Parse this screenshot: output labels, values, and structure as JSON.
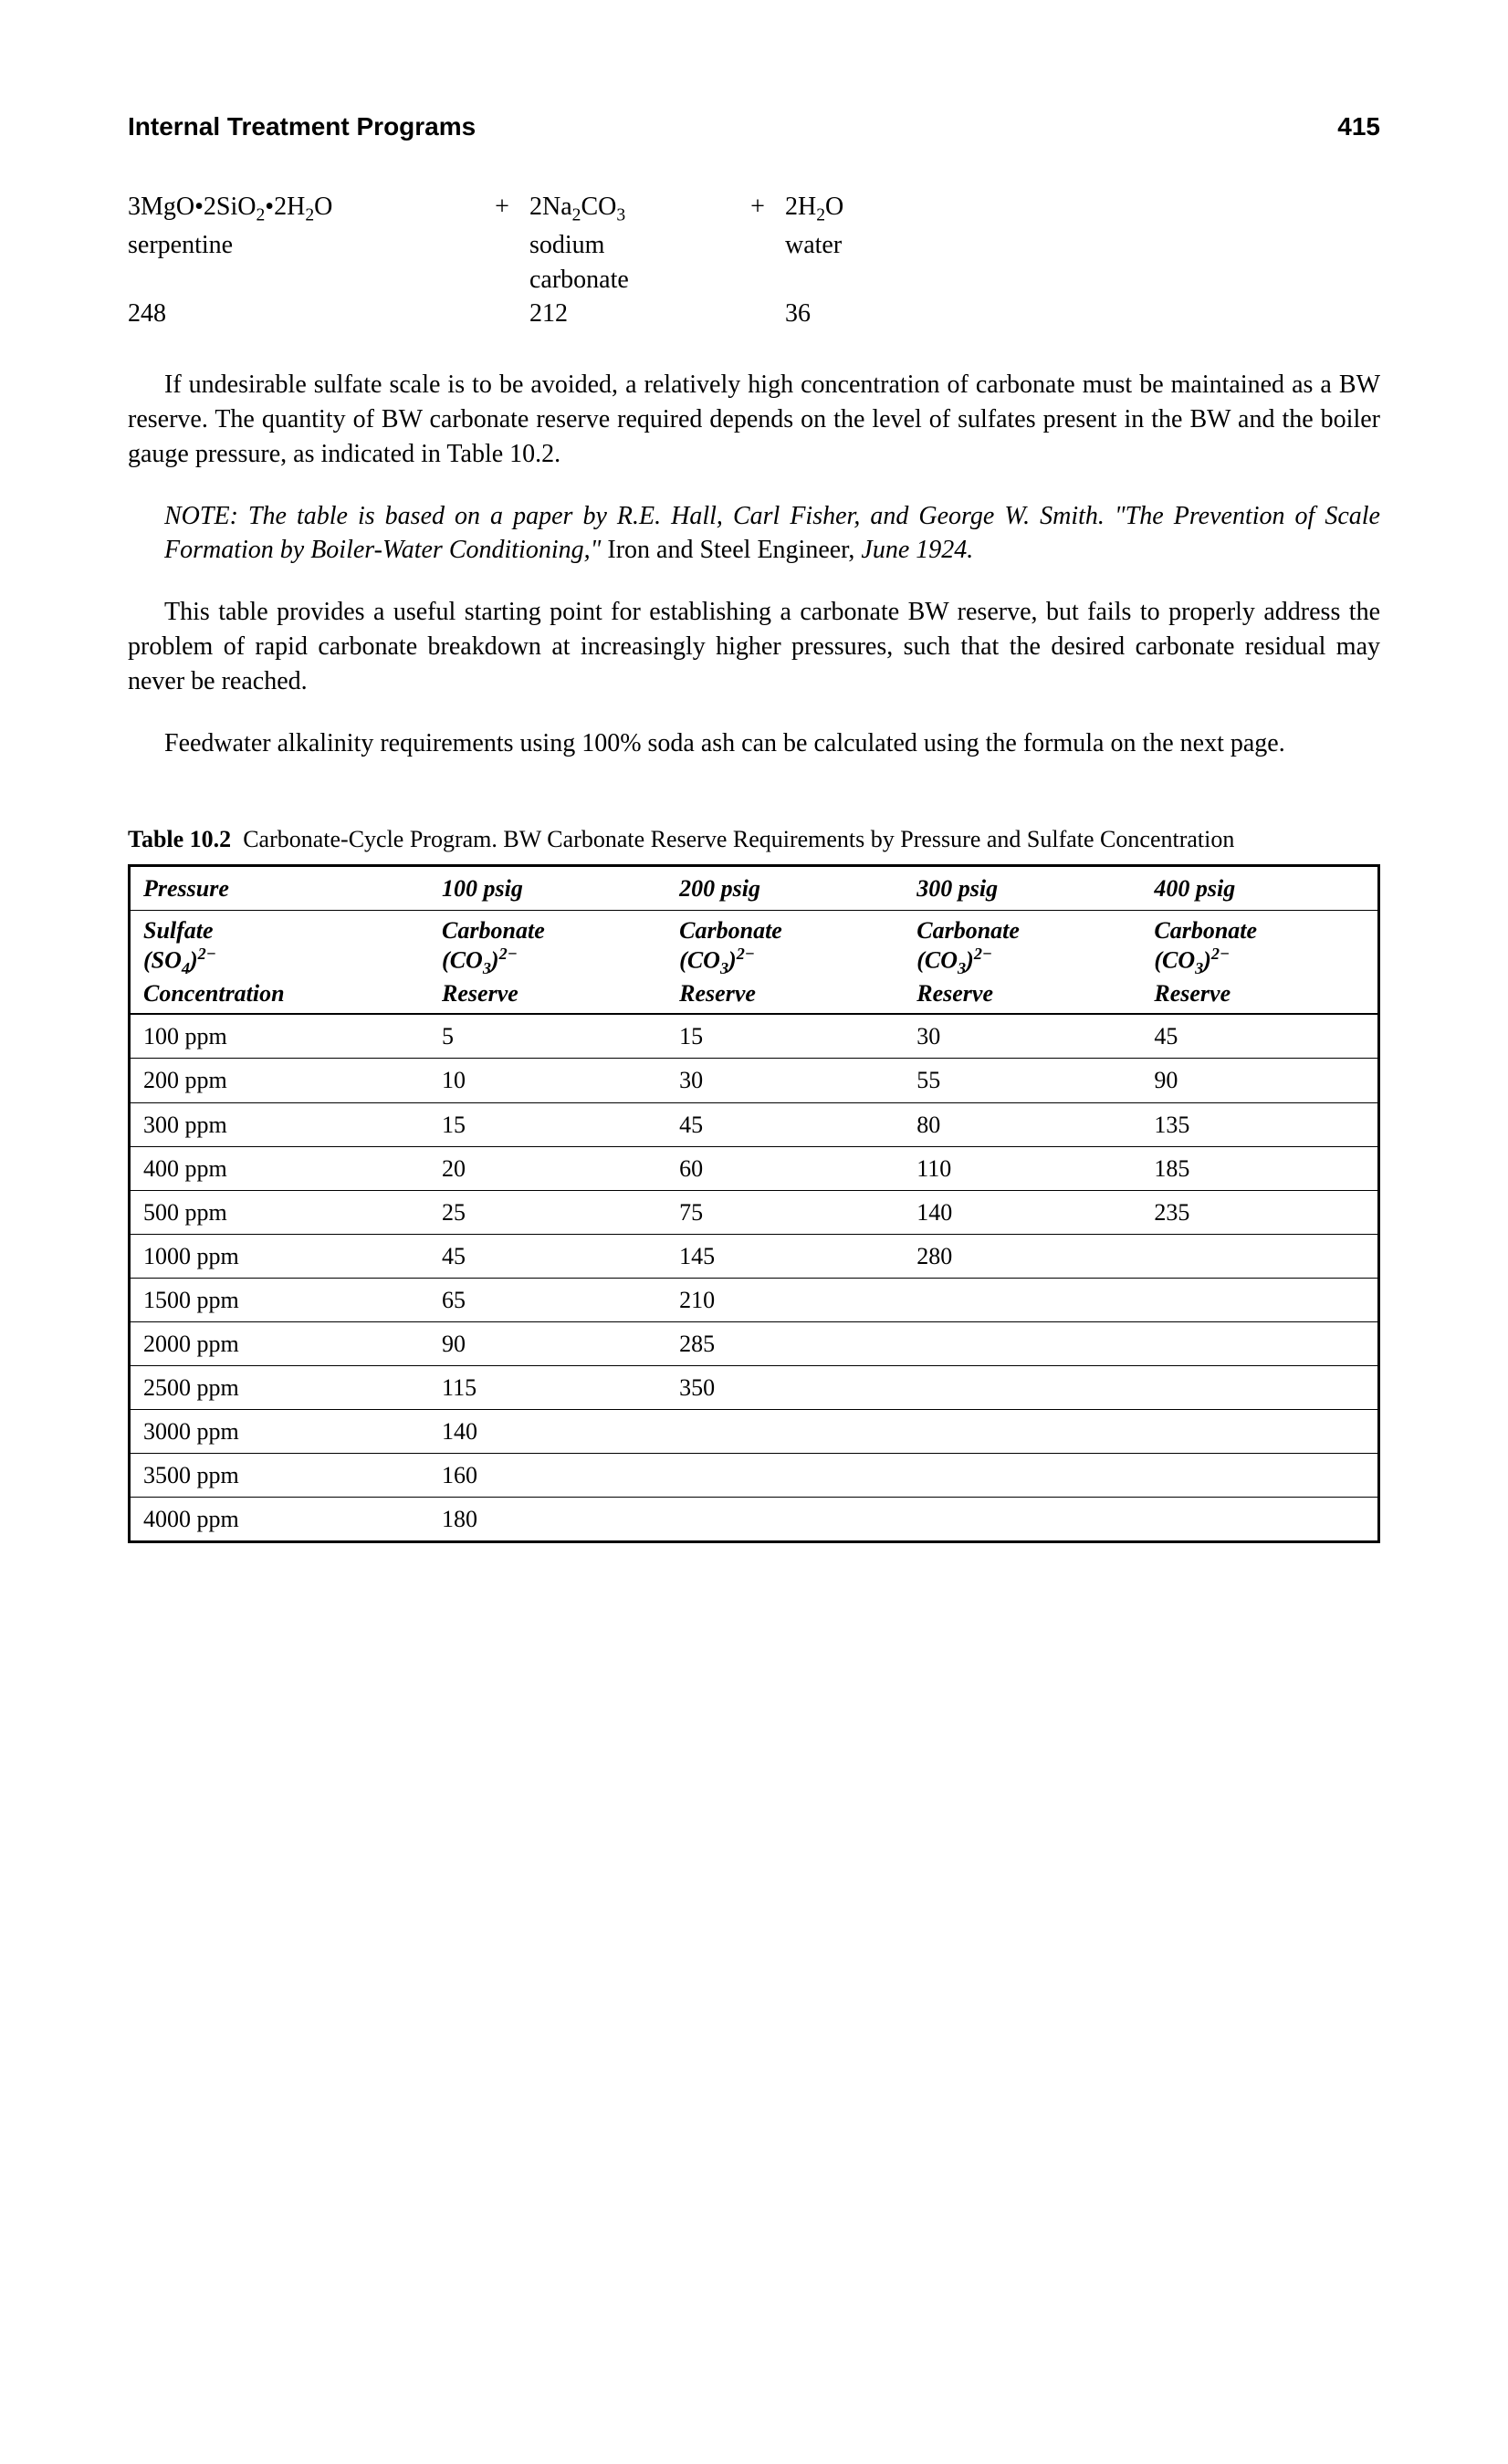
{
  "header": {
    "title": "Internal Treatment Programs",
    "page_number": "415"
  },
  "equation": {
    "reactant1_formula": "3MgO·2SiO₂·2H₂O",
    "reactant1_name": "serpentine",
    "reactant1_mass": "248",
    "plus1": "+",
    "reactant2_formula": "2Na₂CO₃",
    "reactant2_name": "sodium carbonate",
    "reactant2_mass": "212",
    "plus2": "+",
    "product_formula": "2H₂O",
    "product_name": "water",
    "product_mass": "36"
  },
  "para1": "If undesirable sulfate scale is to be avoided, a relatively high concentration of carbonate must be maintained as a BW reserve. The quantity of BW carbonate reserve required depends on the level of sulfates present in the BW and the boiler gauge pressure, as indicated in Table 10.2.",
  "note_label": "NOTE:",
  "note_body_italic1": " The table is based on a paper by R.E. Hall, Carl Fisher, and George W. Smith. \"The Prevention of Scale Formation by Boiler-Water Conditioning,\"",
  "note_body_roman": " Iron and Steel Engineer,",
  "note_body_italic2": " June 1924.",
  "para2": "This table provides a useful starting point for establishing a carbonate BW reserve, but fails to properly address the problem of rapid carbonate breakdown at increasingly higher pressures, such that the desired carbonate residual may never be reached.",
  "para3": "Feedwater alkalinity requirements using 100% soda ash can be calculated using the formula on the next page.",
  "table": {
    "label": "Table 10.2",
    "caption_rest": "Carbonate-Cycle Program. BW Carbonate Reserve Requirements by Pressure and Sulfate Concentration",
    "header_row1": {
      "c0": "Pressure",
      "c1": "100 psig",
      "c2": "200 psig",
      "c3": "300 psig",
      "c4": "400 psig"
    },
    "header_row2": {
      "c0a": "Sulfate",
      "c0b": "(SO₄)²⁻",
      "c0c": "Concentration",
      "carb_a": "Carbonate",
      "carb_b": "(CO₃)²⁻",
      "carb_c": "Reserve"
    },
    "rows": [
      {
        "c0": "100 ppm",
        "c1": "5",
        "c2": "15",
        "c3": "30",
        "c4": "45"
      },
      {
        "c0": "200 ppm",
        "c1": "10",
        "c2": "30",
        "c3": "55",
        "c4": "90"
      },
      {
        "c0": "300 ppm",
        "c1": "15",
        "c2": "45",
        "c3": "80",
        "c4": "135"
      },
      {
        "c0": "400 ppm",
        "c1": "20",
        "c2": "60",
        "c3": "110",
        "c4": "185"
      },
      {
        "c0": "500 ppm",
        "c1": "25",
        "c2": "75",
        "c3": "140",
        "c4": "235"
      },
      {
        "c0": "1000 ppm",
        "c1": "45",
        "c2": "145",
        "c3": "280",
        "c4": ""
      },
      {
        "c0": "1500 ppm",
        "c1": "65",
        "c2": "210",
        "c3": "",
        "c4": ""
      },
      {
        "c0": "2000 ppm",
        "c1": "90",
        "c2": "285",
        "c3": "",
        "c4": ""
      },
      {
        "c0": "2500 ppm",
        "c1": "115",
        "c2": "350",
        "c3": "",
        "c4": ""
      },
      {
        "c0": "3000 ppm",
        "c1": "140",
        "c2": "",
        "c3": "",
        "c4": ""
      },
      {
        "c0": "3500 ppm",
        "c1": "160",
        "c2": "",
        "c3": "",
        "c4": ""
      },
      {
        "c0": "4000 ppm",
        "c1": "180",
        "c2": "",
        "c3": "",
        "c4": ""
      }
    ]
  }
}
